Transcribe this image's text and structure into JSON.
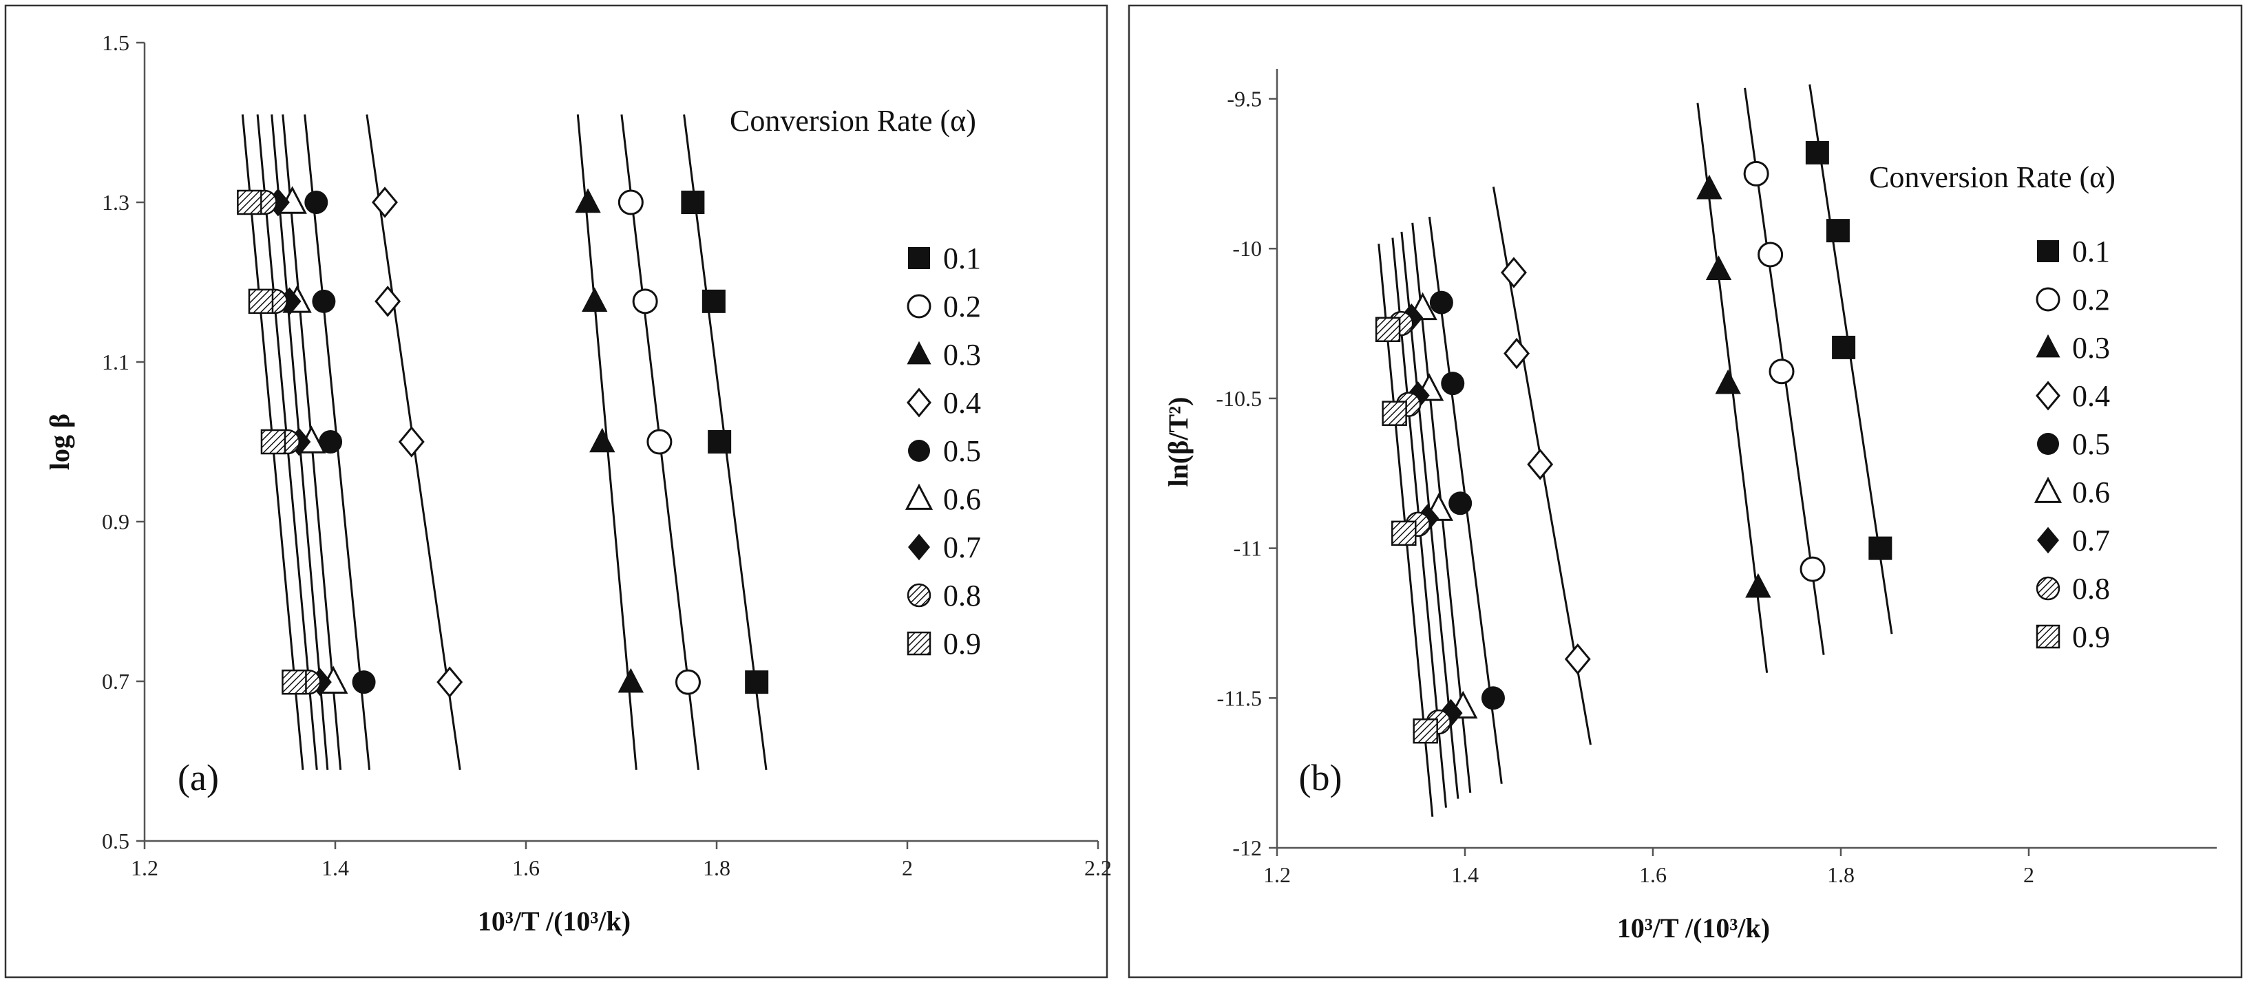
{
  "chart_data": [
    {
      "type": "scatter",
      "panel_label": "(a)",
      "xlabel": "10³/T /(10³/k)",
      "ylabel": "log β",
      "xlim": [
        1.2,
        2.2
      ],
      "ylim": [
        0.5,
        1.5
      ],
      "x_ticks": [
        "1.2",
        "1.4",
        "1.6",
        "1.8",
        "2",
        "2.2"
      ],
      "y_ticks": [
        "0.5",
        "0.7",
        "0.9",
        "1.1",
        "1.3",
        "1.5"
      ],
      "legend_title": "Conversion Rate (α)",
      "legend_position": "right",
      "fit_lines": true,
      "series": [
        {
          "name": "0.1",
          "marker": "square-filled",
          "points": [
            [
              1.775,
              1.3
            ],
            [
              1.797,
              1.176
            ],
            [
              1.803,
              1.0
            ],
            [
              1.842,
              0.699
            ]
          ]
        },
        {
          "name": "0.2",
          "marker": "circle-open",
          "points": [
            [
              1.71,
              1.3
            ],
            [
              1.725,
              1.176
            ],
            [
              1.74,
              1.0
            ],
            [
              1.77,
              0.699
            ]
          ]
        },
        {
          "name": "0.3",
          "marker": "triangle-filled",
          "points": [
            [
              1.665,
              1.3
            ],
            [
              1.672,
              1.176
            ],
            [
              1.68,
              1.0
            ],
            [
              1.71,
              0.699
            ]
          ]
        },
        {
          "name": "0.4",
          "marker": "diamond-open",
          "points": [
            [
              1.452,
              1.3
            ],
            [
              1.455,
              1.176
            ],
            [
              1.48,
              1.0
            ],
            [
              1.52,
              0.699
            ]
          ]
        },
        {
          "name": "0.5",
          "marker": "circle-filled",
          "points": [
            [
              1.38,
              1.3
            ],
            [
              1.388,
              1.176
            ],
            [
              1.395,
              1.0
            ],
            [
              1.43,
              0.699
            ]
          ]
        },
        {
          "name": "0.6",
          "marker": "triangle-open",
          "points": [
            [
              1.355,
              1.3
            ],
            [
              1.36,
              1.176
            ],
            [
              1.375,
              1.0
            ],
            [
              1.398,
              0.699
            ]
          ]
        },
        {
          "name": "0.7",
          "marker": "diamond-filled",
          "points": [
            [
              1.34,
              1.3
            ],
            [
              1.352,
              1.176
            ],
            [
              1.362,
              1.0
            ],
            [
              1.384,
              0.699
            ]
          ]
        },
        {
          "name": "0.8",
          "marker": "circle-hatched",
          "points": [
            [
              1.326,
              1.3
            ],
            [
              1.337,
              1.176
            ],
            [
              1.35,
              1.0
            ],
            [
              1.372,
              0.699
            ]
          ]
        },
        {
          "name": "0.9",
          "marker": "square-hatched",
          "points": [
            [
              1.31,
              1.3
            ],
            [
              1.322,
              1.176
            ],
            [
              1.335,
              1.0
            ],
            [
              1.357,
              0.699
            ]
          ]
        }
      ]
    },
    {
      "type": "scatter",
      "panel_label": "(b)",
      "xlabel": "10³/T /(10³/k)",
      "ylabel": "ln(β/T²)",
      "xlim": [
        1.2,
        2.2
      ],
      "ylim": [
        -12,
        -9.4
      ],
      "x_ticks": [
        "1.2",
        "1.4",
        "1.6",
        "1.8",
        "2"
      ],
      "y_ticks": [
        "-12",
        "-11.5",
        "-11",
        "-10.5",
        "-10",
        "-9.5"
      ],
      "legend_title": "Conversion Rate (α)",
      "legend_position": "right",
      "fit_lines": true,
      "series": [
        {
          "name": "0.1",
          "marker": "square-filled",
          "points": [
            [
              1.775,
              -9.68
            ],
            [
              1.797,
              -9.94
            ],
            [
              1.803,
              -10.33
            ],
            [
              1.842,
              -11.0
            ]
          ]
        },
        {
          "name": "0.2",
          "marker": "circle-open",
          "points": [
            [
              1.71,
              -9.75
            ],
            [
              1.725,
              -10.02
            ],
            [
              1.737,
              -10.41
            ],
            [
              1.77,
              -11.07
            ]
          ]
        },
        {
          "name": "0.3",
          "marker": "triangle-filled",
          "points": [
            [
              1.66,
              -9.8
            ],
            [
              1.67,
              -10.07
            ],
            [
              1.68,
              -10.45
            ],
            [
              1.712,
              -11.13
            ]
          ]
        },
        {
          "name": "0.4",
          "marker": "diamond-open",
          "points": [
            [
              1.452,
              -10.08
            ],
            [
              1.455,
              -10.35
            ],
            [
              1.48,
              -10.72
            ],
            [
              1.52,
              -11.37
            ]
          ]
        },
        {
          "name": "0.5",
          "marker": "circle-filled",
          "points": [
            [
              1.375,
              -10.18
            ],
            [
              1.387,
              -10.45
            ],
            [
              1.395,
              -10.85
            ],
            [
              1.43,
              -11.5
            ]
          ]
        },
        {
          "name": "0.6",
          "marker": "triangle-open",
          "points": [
            [
              1.355,
              -10.2
            ],
            [
              1.362,
              -10.47
            ],
            [
              1.372,
              -10.87
            ],
            [
              1.398,
              -11.53
            ]
          ]
        },
        {
          "name": "0.7",
          "marker": "diamond-filled",
          "points": [
            [
              1.343,
              -10.23
            ],
            [
              1.35,
              -10.49
            ],
            [
              1.36,
              -10.9
            ],
            [
              1.385,
              -11.55
            ]
          ]
        },
        {
          "name": "0.8",
          "marker": "circle-hatched",
          "points": [
            [
              1.332,
              -10.25
            ],
            [
              1.34,
              -10.52
            ],
            [
              1.35,
              -10.92
            ],
            [
              1.372,
              -11.58
            ]
          ]
        },
        {
          "name": "0.9",
          "marker": "square-hatched",
          "points": [
            [
              1.318,
              -10.27
            ],
            [
              1.325,
              -10.55
            ],
            [
              1.335,
              -10.95
            ],
            [
              1.358,
              -11.61
            ]
          ]
        }
      ]
    }
  ]
}
